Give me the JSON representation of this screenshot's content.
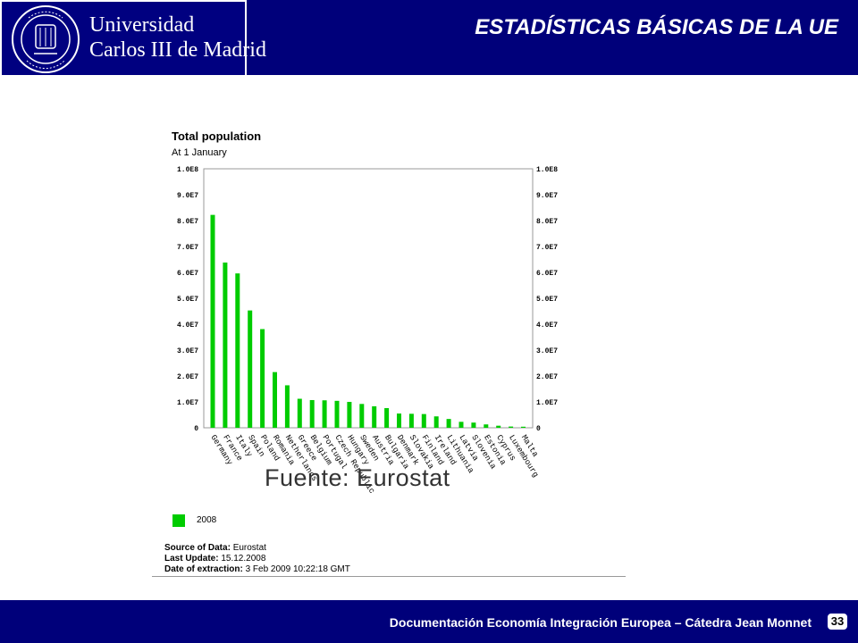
{
  "header": {
    "university_line1": "Universidad",
    "university_line2": "Carlos III de Madrid",
    "slide_title": "ESTADÍSTICAS BÁSICAS DE LA UE"
  },
  "figure": {
    "source_overlay": "Fuente:  Eurostat",
    "legend_label": "2008",
    "source_label": "Source of Data:",
    "source_value": "Eurostat",
    "update_label": "Last Update:",
    "update_value": "15.12.2008",
    "extraction_label": "Date of extraction:",
    "extraction_value": "3 Feb 2009 10:22:18 GMT"
  },
  "chart_data": {
    "type": "bar",
    "title": "Total population",
    "subtitle": "At 1 January",
    "categories": [
      "Germany",
      "France",
      "Italy",
      "Spain",
      "Poland",
      "Romania",
      "Netherlands",
      "Greece",
      "Belgium",
      "Portugal",
      "Czech Republic",
      "Hungary",
      "Sweden",
      "Austria",
      "Bulgaria",
      "Denmark",
      "Slovakia",
      "Finland",
      "Ireland",
      "Lithuania",
      "Latvia",
      "Slovenia",
      "Estonia",
      "Cyprus",
      "Luxembourg",
      "Malta"
    ],
    "series": [
      {
        "name": "2008",
        "color": "#00cc00",
        "values": [
          82200000,
          63800000,
          59600000,
          45300000,
          38100000,
          21500000,
          16400000,
          11200000,
          10700000,
          10600000,
          10400000,
          10000000,
          9200000,
          8300000,
          7600000,
          5500000,
          5400000,
          5300000,
          4400000,
          3400000,
          2300000,
          2000000,
          1300000,
          800000,
          480000,
          410000
        ]
      }
    ],
    "yticks": [
      "0",
      "1.0E7",
      "2.0E7",
      "3.0E7",
      "4.0E7",
      "5.0E7",
      "6.0E7",
      "7.0E7",
      "8.0E7",
      "9.0E7",
      "1.0E8"
    ],
    "ylim": [
      0,
      100000000
    ],
    "grid": false,
    "legend": "bottom-left"
  },
  "footer": {
    "text": "Documentación Economía Integración Europea – Cátedra Jean Monnet",
    "page_number": "33"
  }
}
